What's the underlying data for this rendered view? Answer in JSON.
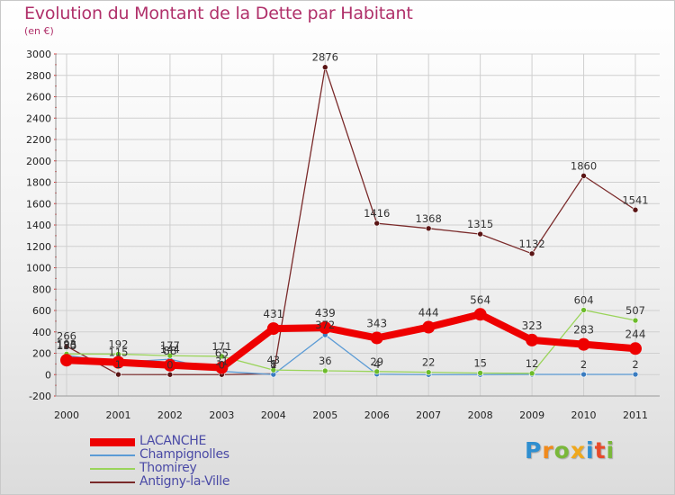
{
  "title": "Evolution du Montant de la Dette par Habitant",
  "unit": "(en €)",
  "logo": {
    "letters": [
      {
        "ch": "P",
        "color": "#2f8fd0"
      },
      {
        "ch": "r",
        "color": "#f08a1c"
      },
      {
        "ch": "o",
        "color": "#7ab83a"
      },
      {
        "ch": "x",
        "color": "#f0a81c"
      },
      {
        "ch": "i",
        "color": "#2f8fd0"
      },
      {
        "ch": "t",
        "color": "#e84a2a"
      },
      {
        "ch": "i",
        "color": "#7ab83a"
      }
    ]
  },
  "chart_data": {
    "type": "line",
    "title": "Evolution du Montant de la Dette par Habitant",
    "ylabel": "(en €)",
    "ylim": [
      -200,
      3000
    ],
    "yticks": [
      -200,
      0,
      200,
      400,
      600,
      800,
      1000,
      1200,
      1400,
      1600,
      1800,
      2000,
      2200,
      2400,
      2600,
      2800,
      3000
    ],
    "categories": [
      "2000",
      "2001",
      "2002",
      "2003",
      "2004",
      "2005",
      "2006",
      "2007",
      "2008",
      "2009",
      "2010",
      "2011"
    ],
    "grid": true,
    "series": [
      {
        "name": "Antigny-la-Ville",
        "color": "#7a2a2a",
        "marker": "#5a1414",
        "values": [
          266,
          1,
          0,
          0,
          8,
          2876,
          1416,
          1368,
          1315,
          1132,
          1860,
          1541
        ],
        "labels": [
          "266",
          "1",
          "0",
          "0",
          "8",
          "2876",
          "1416",
          "1368",
          "1315",
          "1132",
          "1860",
          "1541"
        ]
      },
      {
        "name": "Champignolles",
        "color": "#5b9bd5",
        "marker": "#3a7cc0",
        "values": [
          180,
          115,
          144,
          31,
          1,
          372,
          4,
          0,
          0,
          2,
          2,
          2
        ],
        "labels": [
          "180",
          "115",
          "144",
          "31",
          "1",
          "372",
          "4",
          "",
          "",
          "",
          "2",
          "2"
        ]
      },
      {
        "name": "Thomirey",
        "color": "#9ad45a",
        "marker": "#6cbb2a",
        "values": [
          193,
          192,
          177,
          171,
          43,
          36,
          29,
          22,
          15,
          12,
          604,
          507
        ],
        "labels": [
          "193",
          "192",
          "177",
          "171",
          "43",
          "36",
          "29",
          "22",
          "15",
          "12",
          "604",
          "507"
        ]
      },
      {
        "name": "LACANCHE",
        "color": "#ee0000",
        "marker": "#ee0000",
        "values": [
          135,
          115,
          88,
          65,
          431,
          439,
          343,
          444,
          564,
          323,
          283,
          244
        ],
        "labels": [
          "135",
          "",
          "88",
          "65",
          "431",
          "439",
          "343",
          "444",
          "564",
          "323",
          "283",
          "244"
        ]
      }
    ],
    "legend_order": [
      "LACANCHE",
      "Champignolles",
      "Thomirey",
      "Antigny-la-Ville"
    ]
  }
}
